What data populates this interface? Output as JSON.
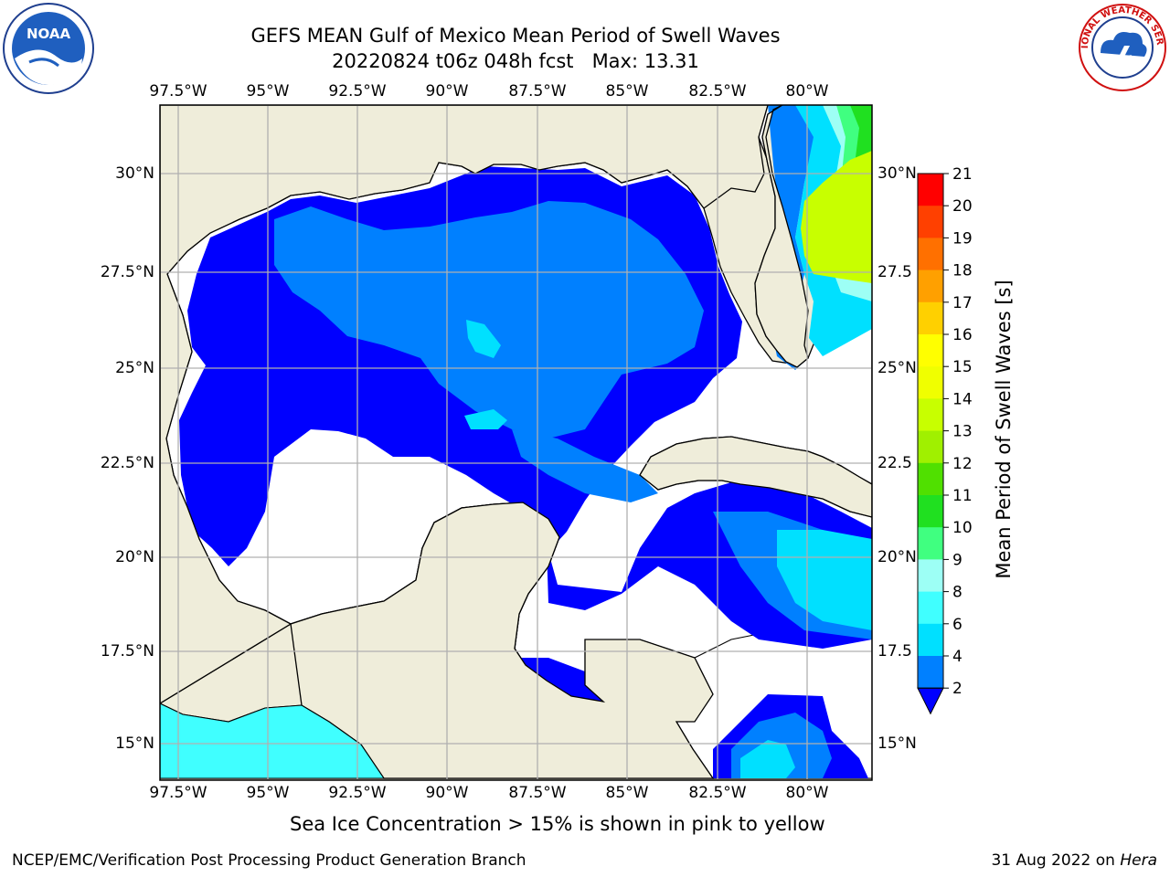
{
  "title": {
    "line1": "GEFS MEAN Gulf of Mexico Mean Period of Swell Waves",
    "line2": "20220824 t06z 048h fcst   Max: 13.31"
  },
  "map": {
    "lon_labels": [
      "97.5°W",
      "95°W",
      "92.5°W",
      "90°W",
      "87.5°W",
      "85°W",
      "82.5°W",
      "80°W"
    ],
    "lat_labels_left": [
      "30°N",
      "27.5°N",
      "25°N",
      "22.5°N",
      "20°N",
      "17.5°N",
      "15°N"
    ],
    "lat_labels_right": [
      "30°N",
      "27.5",
      "25°N",
      "22.5",
      "20°N",
      "17.5",
      "15°N"
    ],
    "colors": {
      "land": "#efedda",
      "ocean_blank": "#ffffff",
      "grid": "#b0b0b0",
      "coast": "#000000"
    }
  },
  "colorbar": {
    "label": "Mean Period of Swell Waves [s]",
    "ticks": [
      "2",
      "4",
      "6",
      "8",
      "9",
      "10",
      "11",
      "12",
      "13",
      "14",
      "15",
      "16",
      "17",
      "18",
      "19",
      "20",
      "21"
    ],
    "colors": [
      "#0000ff",
      "#0080ff",
      "#00e0ff",
      "#40ffff",
      "#9dfff5",
      "#40ff80",
      "#20e020",
      "#50e000",
      "#a0f000",
      "#c8ff00",
      "#f0ff00",
      "#ffff00",
      "#ffd000",
      "#ffa000",
      "#ff7000",
      "#ff4000",
      "#ff0000"
    ]
  },
  "note": "Sea Ice Concentration > 15% is shown in pink to yellow",
  "footer": {
    "left": "NCEP/EMC/Verification Post Processing Product Generation Branch",
    "date": "31 Aug 2022 on ",
    "host": "Hera"
  },
  "logos": {
    "left_text": "NOAA",
    "right_text": "NATIONAL WEATHER SERVICE"
  }
}
